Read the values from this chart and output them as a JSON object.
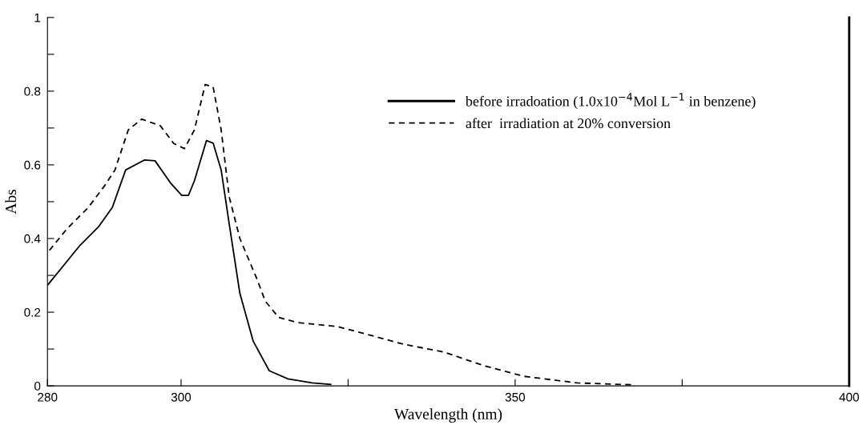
{
  "chart_data": {
    "type": "line",
    "xlabel": "Wavelength (nm)",
    "ylabel": "Abs",
    "xlim": [
      280,
      400
    ],
    "xticks": [
      280,
      300,
      {
        "value": 325,
        "label": null
      },
      350,
      {
        "value": 375,
        "label": null
      },
      400
    ],
    "ylim": [
      0,
      1
    ],
    "yticks": [
      {
        "value": 0,
        "label": "0"
      },
      {
        "value": 0.1,
        "label": null
      },
      0.2,
      {
        "value": 0.3,
        "label": null
      },
      0.4,
      {
        "value": 0.5,
        "label": null
      },
      0.6,
      {
        "value": 0.7,
        "label": null
      },
      0.8,
      {
        "value": 0.9,
        "label": null
      },
      {
        "value": 1,
        "label": "1"
      }
    ],
    "grid": false,
    "legend": "top right",
    "marker": "none",
    "series": [
      {
        "name": "before irradoation (1.0x10$^{−4}$Mol L$^{−1}$ in benzene)",
        "color": "#000000",
        "line_style": "solid",
        "x": [
          280.0,
          284.9,
          287.7,
          289.7,
          291.7,
          294.5,
          296.1,
          298.5,
          300.1,
          301.1,
          302.0,
          303.8,
          304.8,
          306.0,
          307.2,
          308.8,
          310.8,
          313.2,
          316.0,
          319.6,
          322.4
        ],
        "values": [
          0.273,
          0.382,
          0.433,
          0.484,
          0.586,
          0.613,
          0.611,
          0.549,
          0.517,
          0.517,
          0.557,
          0.666,
          0.659,
          0.586,
          0.44,
          0.251,
          0.121,
          0.041,
          0.019,
          0.008,
          0.004
        ]
      },
      {
        "name": "after  irradiation at 20% conversion",
        "color": "#000000",
        "line_style": "dashed",
        "x": [
          280.3,
          282.9,
          286.1,
          288.5,
          290.1,
          292.1,
          294.1,
          296.9,
          298.9,
          300.5,
          302.0,
          303.6,
          304.8,
          306.0,
          307.2,
          308.8,
          311.4,
          312.6,
          314.6,
          317.4,
          323.4,
          327.4,
          333.3,
          339.3,
          345.3,
          351.3,
          359.3,
          367.4
        ],
        "values": [
          0.368,
          0.426,
          0.484,
          0.542,
          0.586,
          0.695,
          0.724,
          0.706,
          0.658,
          0.644,
          0.695,
          0.818,
          0.811,
          0.695,
          0.513,
          0.4,
          0.288,
          0.23,
          0.186,
          0.172,
          0.161,
          0.142,
          0.113,
          0.092,
          0.055,
          0.026,
          0.008,
          0.003
        ]
      }
    ]
  }
}
